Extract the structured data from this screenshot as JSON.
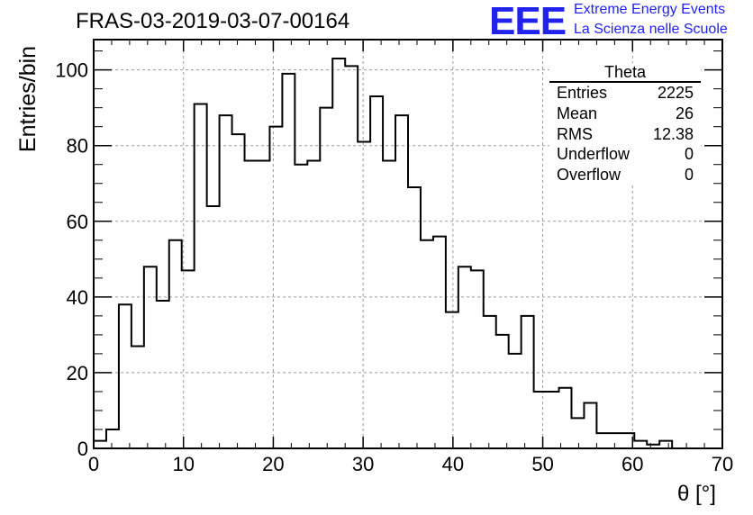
{
  "chart_data": {
    "type": "bar",
    "title": "FRAS-03-2019-03-07-00164",
    "xlabel": "θ [°]",
    "ylabel": "Entries/bin",
    "xlim": [
      0,
      70
    ],
    "ylim": [
      0,
      108
    ],
    "xticks": [
      0,
      10,
      20,
      30,
      40,
      50,
      60,
      70
    ],
    "yticks": [
      0,
      20,
      40,
      60,
      80,
      100
    ],
    "grid": true,
    "bin_width": 1.4,
    "bin_edges_start": 0,
    "values": [
      2,
      5,
      38,
      27,
      48,
      39,
      55,
      47,
      91,
      64,
      88,
      83,
      76,
      76,
      85,
      99,
      75,
      76,
      90,
      103,
      101,
      81,
      93,
      76,
      88,
      69,
      55,
      56,
      36,
      48,
      47,
      35,
      30,
      25,
      35,
      15,
      15,
      16,
      8,
      12,
      4,
      4,
      4,
      2,
      1,
      2,
      0,
      0,
      0,
      0
    ],
    "stats_box": {
      "title": "Theta",
      "rows": [
        {
          "label": "Entries",
          "value": "2225"
        },
        {
          "label": "Mean",
          "value": "26"
        },
        {
          "label": "RMS",
          "value": "12.38"
        },
        {
          "label": "Underflow",
          "value": "0"
        },
        {
          "label": "Overflow",
          "value": "0"
        }
      ]
    }
  },
  "logo": {
    "mark": "EEE",
    "line1": "Extreme Energy Events",
    "line2": "La Scienza nelle Scuole",
    "color": "#2222ee"
  }
}
